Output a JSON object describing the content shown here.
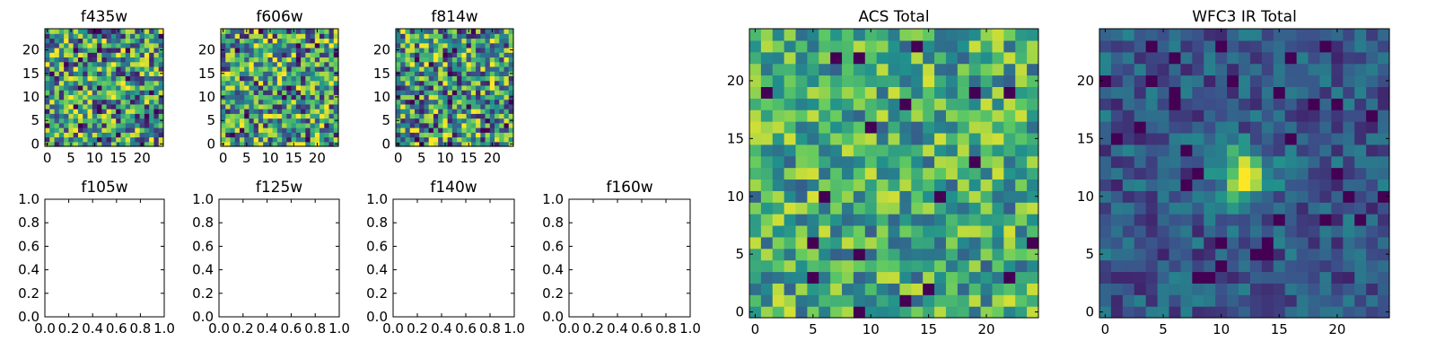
{
  "chart_data": [
    {
      "type": "heatmap",
      "title": "f435w",
      "grid_size": 24,
      "xlim": [
        0,
        24
      ],
      "ylim": [
        0,
        24
      ],
      "xticks": [
        "0",
        "5",
        "10",
        "15",
        "20"
      ],
      "yticks": [
        "0",
        "5",
        "10",
        "15",
        "20"
      ],
      "empty": false,
      "colormap": "viridis"
    },
    {
      "type": "heatmap",
      "title": "f606w",
      "grid_size": 24,
      "xlim": [
        0,
        24
      ],
      "ylim": [
        0,
        24
      ],
      "xticks": [
        "0",
        "5",
        "10",
        "15",
        "20"
      ],
      "yticks": [
        "0",
        "5",
        "10",
        "15",
        "20"
      ],
      "empty": false,
      "colormap": "viridis"
    },
    {
      "type": "heatmap",
      "title": "f814w",
      "grid_size": 24,
      "xlim": [
        0,
        24
      ],
      "ylim": [
        0,
        24
      ],
      "xticks": [
        "0",
        "5",
        "10",
        "15",
        "20"
      ],
      "yticks": [
        "0",
        "5",
        "10",
        "15",
        "20"
      ],
      "empty": false,
      "colormap": "viridis"
    },
    {
      "type": "heatmap",
      "title": "f105w",
      "xlim": [
        0.0,
        1.0
      ],
      "ylim": [
        0.0,
        1.0
      ],
      "xticks": [
        "0.0",
        "0.2",
        "0.4",
        "0.6",
        "0.8",
        "1.0"
      ],
      "yticks": [
        "0.0",
        "0.2",
        "0.4",
        "0.6",
        "0.8",
        "1.0"
      ],
      "empty": true
    },
    {
      "type": "heatmap",
      "title": "f125w",
      "xlim": [
        0.0,
        1.0
      ],
      "ylim": [
        0.0,
        1.0
      ],
      "xticks": [
        "0.0",
        "0.2",
        "0.4",
        "0.6",
        "0.8",
        "1.0"
      ],
      "yticks": [
        "0.0",
        "0.2",
        "0.4",
        "0.6",
        "0.8",
        "1.0"
      ],
      "empty": true
    },
    {
      "type": "heatmap",
      "title": "f140w",
      "xlim": [
        0.0,
        1.0
      ],
      "ylim": [
        0.0,
        1.0
      ],
      "xticks": [
        "0.0",
        "0.2",
        "0.4",
        "0.6",
        "0.8",
        "1.0"
      ],
      "yticks": [
        "0.0",
        "0.2",
        "0.4",
        "0.6",
        "0.8",
        "1.0"
      ],
      "empty": true
    },
    {
      "type": "heatmap",
      "title": "f160w",
      "xlim": [
        0.0,
        1.0
      ],
      "ylim": [
        0.0,
        1.0
      ],
      "xticks": [
        "0.0",
        "0.2",
        "0.4",
        "0.6",
        "0.8",
        "1.0"
      ],
      "yticks": [
        "0.0",
        "0.2",
        "0.4",
        "0.6",
        "0.8",
        "1.0"
      ],
      "empty": true
    },
    {
      "type": "heatmap",
      "title": "ACS Total",
      "grid_size": 24,
      "xlim": [
        0,
        24
      ],
      "ylim": [
        0,
        24
      ],
      "xticks": [
        "0",
        "5",
        "10",
        "15",
        "20"
      ],
      "yticks": [
        "0",
        "5",
        "10",
        "15",
        "20"
      ],
      "empty": false,
      "colormap": "viridis"
    },
    {
      "type": "heatmap",
      "title": "WFC3 IR Total",
      "grid_size": 24,
      "xlim": [
        0,
        24
      ],
      "ylim": [
        0,
        24
      ],
      "xticks": [
        "0",
        "5",
        "10",
        "15",
        "20"
      ],
      "yticks": [
        "0",
        "5",
        "10",
        "15",
        "20"
      ],
      "empty": false,
      "colormap": "viridis",
      "bright_source_center": [
        12,
        12
      ]
    }
  ],
  "colors": {
    "viridis_stops": [
      "#440154",
      "#3b528b",
      "#21908d",
      "#5dc963",
      "#fde725"
    ],
    "frame": "#000000",
    "background": "#ffffff"
  }
}
